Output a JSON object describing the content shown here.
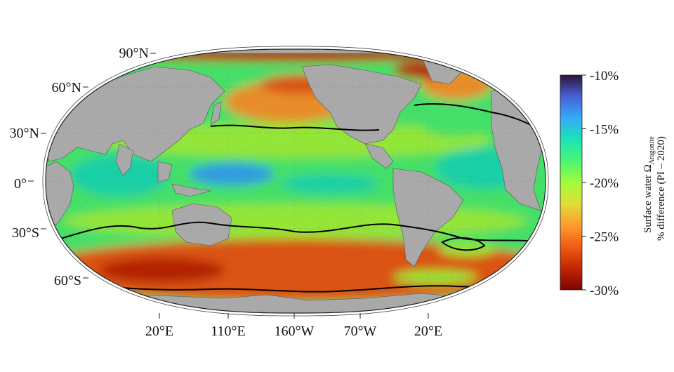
{
  "map": {
    "projection": "Robinson",
    "center_longitude": "160°W",
    "lat_labels": [
      "90°N",
      "60°N",
      "30°N",
      "0°",
      "30°S",
      "60°S"
    ],
    "lon_labels": [
      "20°E",
      "110°E",
      "160°W",
      "70°W",
      "20°E"
    ],
    "land_color": "#a9a9a9",
    "contour_color": "#000000"
  },
  "colorbar": {
    "title_line1_prefix": "Surface water Ω",
    "title_line1_subscript": "Aragonite",
    "title_line2": "% difference (PI – 2020)",
    "tick_labels": [
      "-10%",
      "-15%",
      "-20%",
      "-25%",
      "-30%"
    ],
    "tick_values": [
      -10,
      -15,
      -20,
      -25,
      -30
    ],
    "range": [
      -30,
      -10
    ],
    "colors": [
      "#7a0403",
      "#c42503",
      "#f05b12",
      "#fe9b2d",
      "#e1dd37",
      "#a2fc3c",
      "#4bf572",
      "#1ae4b6",
      "#35abf8",
      "#4662d7",
      "#30123b"
    ]
  }
}
